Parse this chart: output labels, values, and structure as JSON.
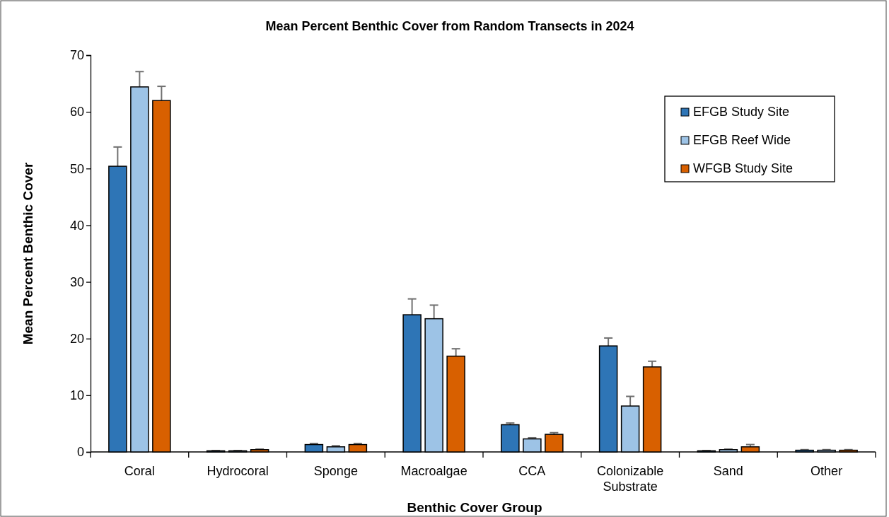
{
  "chart_data": {
    "type": "bar",
    "title": "Mean Percent Benthic Cover from Random Transects in 2024",
    "xlabel": "Benthic Cover Group",
    "ylabel": "Mean Percent Benthic Cover",
    "categories": [
      "Coral",
      "Hydrocoral",
      "Sponge",
      "Macroalgae",
      "CCA",
      "Colonizable Substrate",
      "Sand",
      "Other"
    ],
    "series": [
      {
        "name": "EFGB Study Site",
        "color": "#2e75b6",
        "values": [
          50.4,
          0.2,
          1.3,
          24.2,
          4.8,
          18.7,
          0.2,
          0.3
        ],
        "errors": [
          3.4,
          0.05,
          0.2,
          2.8,
          0.3,
          1.4,
          0.05,
          0.1
        ]
      },
      {
        "name": "EFGB Reef Wide",
        "color": "#9dc3e6",
        "values": [
          64.4,
          0.2,
          0.9,
          23.5,
          2.3,
          8.1,
          0.4,
          0.3
        ],
        "errors": [
          2.7,
          0.05,
          0.2,
          2.4,
          0.2,
          1.7,
          0.1,
          0.1
        ]
      },
      {
        "name": "WFGB Study Site",
        "color": "#d86000",
        "values": [
          62.0,
          0.4,
          1.3,
          16.9,
          3.1,
          15.0,
          0.9,
          0.3
        ],
        "errors": [
          2.5,
          0.1,
          0.2,
          1.3,
          0.3,
          1.0,
          0.4,
          0.1
        ]
      }
    ],
    "ylim": [
      0,
      70
    ],
    "yticks": [
      0,
      10,
      20,
      30,
      40,
      50,
      60,
      70
    ],
    "grid": false,
    "legend": "top right"
  }
}
